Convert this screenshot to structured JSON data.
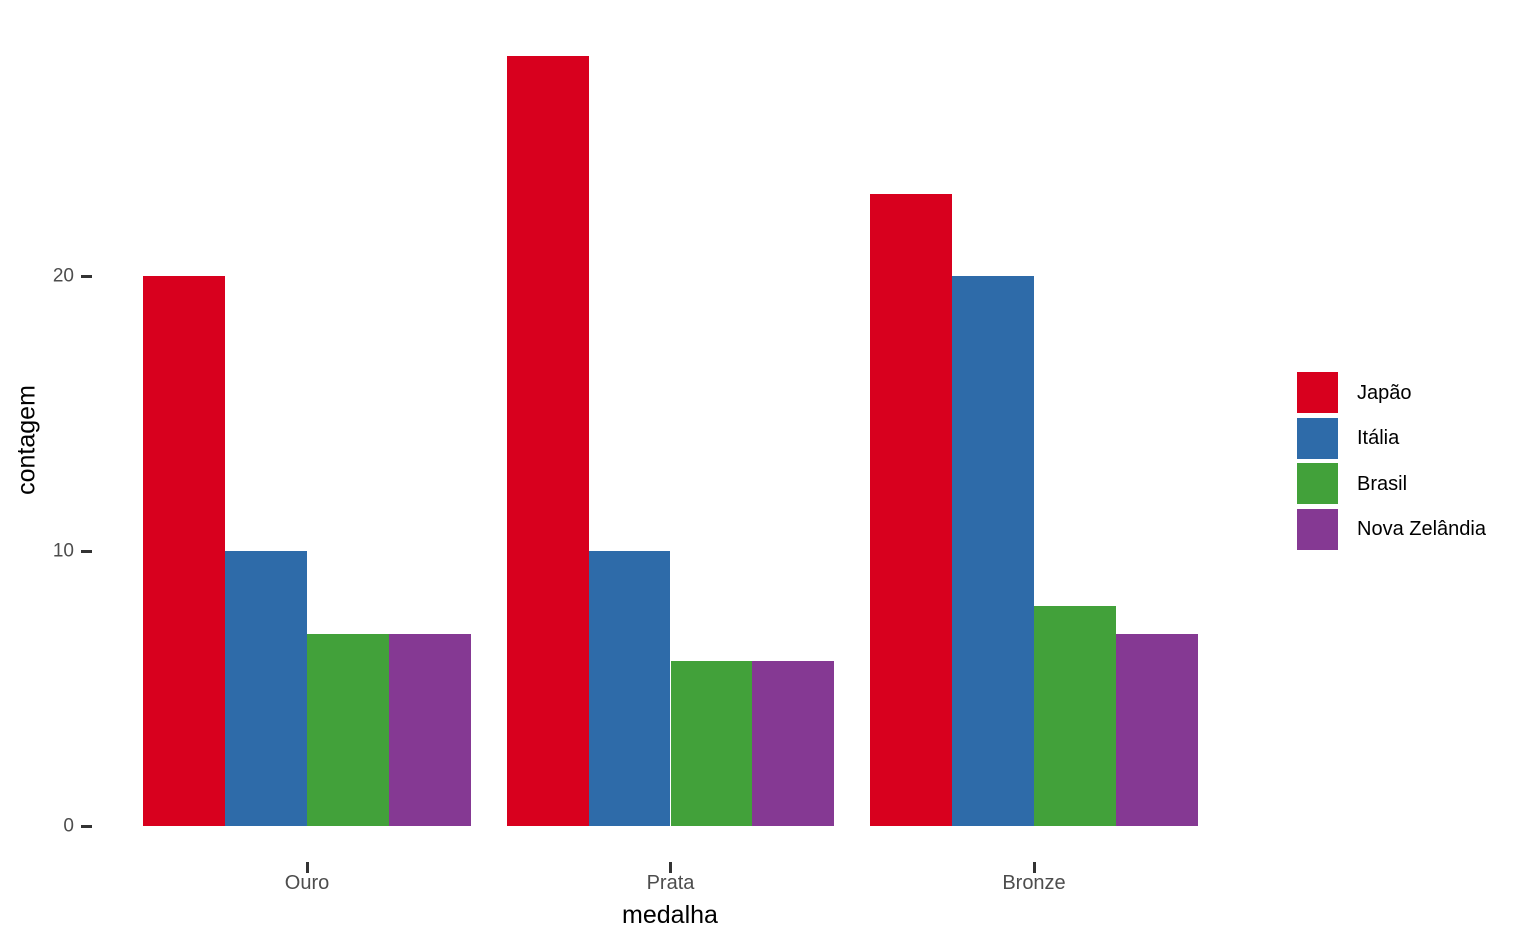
{
  "figure": {
    "background": "#ffffff"
  },
  "chart_data": {
    "type": "bar",
    "mode": "grouped",
    "title": "",
    "xlabel": "medalha",
    "ylabel": "contagem",
    "categories": [
      "Ouro",
      "Prata",
      "Bronze"
    ],
    "series": [
      {
        "name": "Japão",
        "color": "#d8001e",
        "values": [
          20,
          28,
          23
        ]
      },
      {
        "name": "Itália",
        "color": "#2e6ba9",
        "values": [
          10,
          10,
          20
        ]
      },
      {
        "name": "Brasil",
        "color": "#42a13a",
        "values": [
          7,
          6,
          8
        ]
      },
      {
        "name": "Nova Zelândia",
        "color": "#853993",
        "values": [
          7,
          6,
          7
        ]
      }
    ],
    "yticks": [
      0,
      10,
      20
    ],
    "ylim": [
      0,
      29.5
    ],
    "grid": false,
    "axis_lines": false,
    "legend_position": "right",
    "axis_text_color": "#4d4d4d",
    "axis_title_color": "#000000",
    "tick_color": "#333333"
  }
}
